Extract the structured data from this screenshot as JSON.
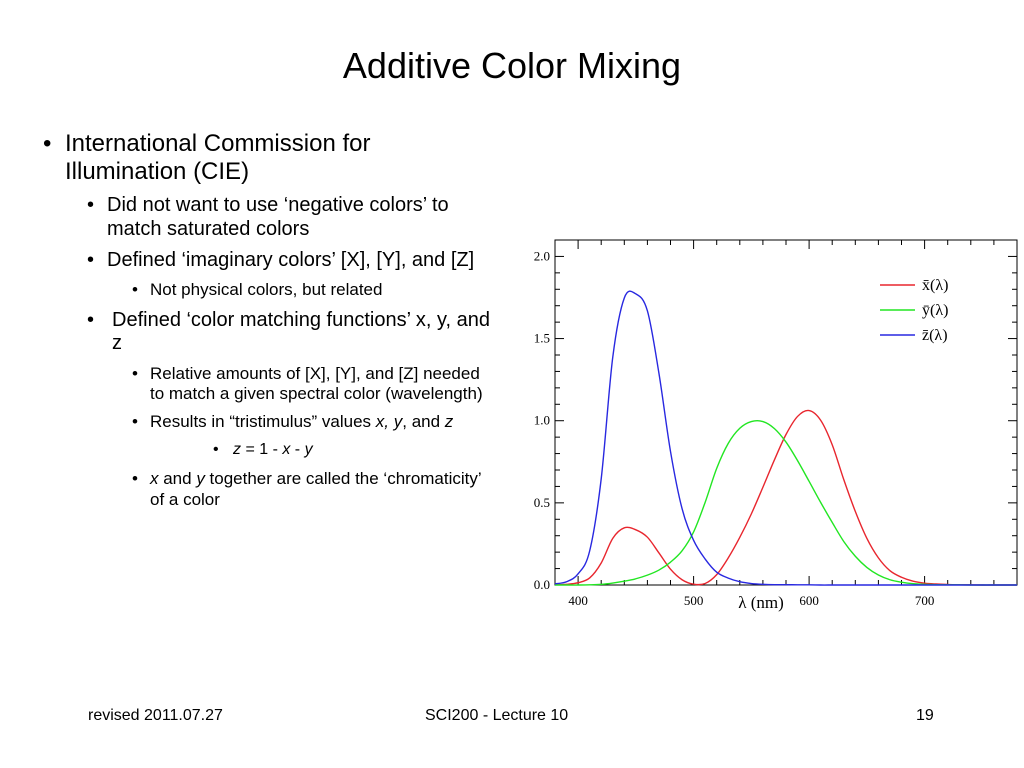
{
  "slide": {
    "title": "Additive Color Mixing",
    "bullets": {
      "b1": "International Commission for Illumination (CIE)",
      "b1_1": "Did not want to use ‘negative colors’ to match saturated colors",
      "b1_2": "Defined ‘imaginary colors’ [X], [Y], and [Z]",
      "b1_2_1": "Not physical colors, but related",
      "b1_3": "Defined ‘color matching functions’ x, y, and z",
      "b1_3_1": "Relative amounts of [X], [Y], and [Z] needed to match a given spectral color (wavelength)",
      "b1_3_2_pre": "Results in “tristimulus” values ",
      "b1_3_2_x": "x,",
      "b1_3_2_y": "y",
      "b1_3_2_mid": ", and ",
      "b1_3_2_z": "z",
      "b1_3_2_1_z": "z",
      "b1_3_2_1_eq": " = 1 - ",
      "b1_3_2_1_x": "x",
      "b1_3_2_1_minus": " - ",
      "b1_3_2_1_y": "y",
      "b1_3_3_x": "x",
      "b1_3_3_and": " and ",
      "b1_3_3_y": "y",
      "b1_3_3_rest": " together are called the ‘chromaticity’ of a color"
    },
    "bullet_marker": "•"
  },
  "footer": {
    "left": "revised 2011.07.27",
    "center": "SCI200 - Lecture 10",
    "right": "19"
  },
  "chart_data": {
    "type": "line",
    "title": "",
    "xlabel": "λ (nm)",
    "ylabel": "",
    "xlim": [
      380,
      780
    ],
    "ylim": [
      0,
      2.1
    ],
    "xticks": [
      400,
      500,
      600,
      700
    ],
    "xtick_labels": [
      "400",
      "500",
      "600",
      "700"
    ],
    "yticks": [
      0,
      0.5,
      1.0,
      1.5,
      2.0
    ],
    "ytick_labels": [
      "0.0",
      "0.5",
      "1.0",
      "1.5",
      "2.0"
    ],
    "legend_position": "top-right",
    "x": [
      380,
      390,
      400,
      410,
      420,
      430,
      440,
      450,
      460,
      470,
      480,
      490,
      500,
      510,
      520,
      530,
      540,
      550,
      560,
      570,
      580,
      590,
      600,
      610,
      620,
      630,
      640,
      650,
      660,
      670,
      680,
      690,
      700,
      710,
      720,
      730,
      740,
      750,
      760,
      770,
      780
    ],
    "series": [
      {
        "name": "x̄(λ)",
        "color": "#e8262e",
        "values": [
          0.001,
          0.004,
          0.014,
          0.043,
          0.134,
          0.284,
          0.348,
          0.336,
          0.291,
          0.195,
          0.096,
          0.032,
          0.005,
          0.009,
          0.063,
          0.165,
          0.29,
          0.433,
          0.595,
          0.762,
          0.916,
          1.026,
          1.062,
          1.003,
          0.854,
          0.642,
          0.448,
          0.284,
          0.165,
          0.087,
          0.047,
          0.023,
          0.011,
          0.006,
          0.003,
          0.001,
          0.001,
          0.0,
          0.0,
          0.0,
          0.0
        ]
      },
      {
        "name": "ȳ(λ)",
        "color": "#22e622",
        "values": [
          0.0,
          0.0,
          0.0,
          0.001,
          0.004,
          0.012,
          0.023,
          0.038,
          0.06,
          0.091,
          0.139,
          0.208,
          0.323,
          0.503,
          0.71,
          0.862,
          0.954,
          0.995,
          0.995,
          0.952,
          0.87,
          0.757,
          0.631,
          0.503,
          0.381,
          0.265,
          0.175,
          0.107,
          0.061,
          0.032,
          0.017,
          0.008,
          0.004,
          0.002,
          0.001,
          0.001,
          0.0,
          0.0,
          0.0,
          0.0,
          0.0
        ]
      },
      {
        "name": "z̄(λ)",
        "color": "#2828e0",
        "values": [
          0.007,
          0.02,
          0.068,
          0.207,
          0.646,
          1.386,
          1.747,
          1.772,
          1.669,
          1.288,
          0.813,
          0.465,
          0.272,
          0.158,
          0.078,
          0.042,
          0.02,
          0.009,
          0.004,
          0.002,
          0.002,
          0.001,
          0.001,
          0.0,
          0.0,
          0.0,
          0.0,
          0.0,
          0.0,
          0.0,
          0.0,
          0.0,
          0.0,
          0.0,
          0.0,
          0.0,
          0.0,
          0.0,
          0.0,
          0.0,
          0.0
        ]
      }
    ]
  }
}
